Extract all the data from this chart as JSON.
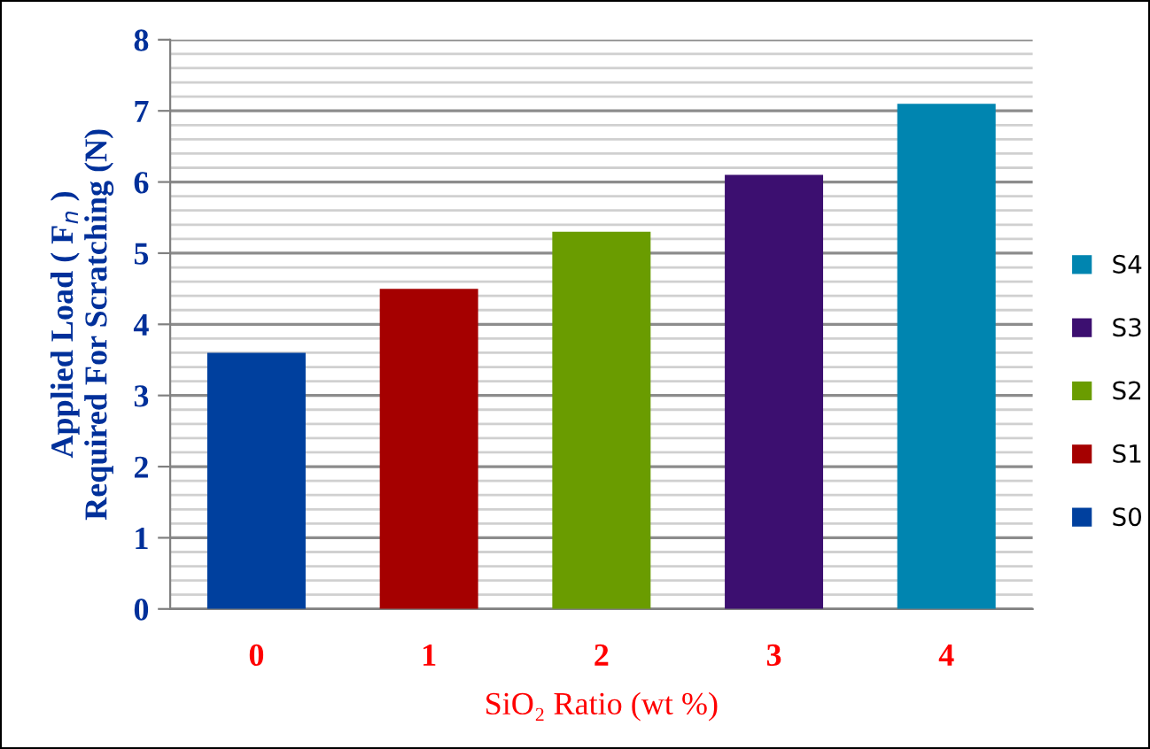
{
  "chart_data": {
    "type": "bar",
    "xlabel": "SiO₂ Ratio (wt %)",
    "ylabel": "Applied Load ( F$_{n}$ )\nRequired For Scratching (N)",
    "categories": [
      "0",
      "1",
      "2",
      "3",
      "4"
    ],
    "series": [
      {
        "name": "S0",
        "color": "#00409e",
        "values": [
          3.6,
          null,
          null,
          null,
          null
        ]
      },
      {
        "name": "S1",
        "color": "#a50000",
        "values": [
          null,
          4.5,
          null,
          null,
          null
        ]
      },
      {
        "name": "S2",
        "color": "#6a9c00",
        "values": [
          null,
          null,
          5.3,
          null,
          null
        ]
      },
      {
        "name": "S3",
        "color": "#3c0f70",
        "values": [
          null,
          null,
          null,
          6.1,
          null
        ]
      },
      {
        "name": "S4",
        "color": "#0085b0",
        "values": [
          null,
          null,
          null,
          null,
          7.1
        ]
      }
    ],
    "ylim": [
      0,
      8
    ],
    "yticks": [
      0,
      {
        "value": 0.2,
        "label": null
      },
      {
        "value": 0.4,
        "label": null
      },
      {
        "value": 0.6,
        "label": null
      },
      {
        "value": 0.8,
        "label": null
      },
      1,
      {
        "value": 1.2,
        "label": null
      },
      {
        "value": 1.4,
        "label": null
      },
      {
        "value": 1.6,
        "label": null
      },
      {
        "value": 1.8,
        "label": null
      },
      2,
      {
        "value": 2.2,
        "label": null
      },
      {
        "value": 2.4,
        "label": null
      },
      {
        "value": 2.6,
        "label": null
      },
      {
        "value": 2.8,
        "label": null
      },
      3,
      {
        "value": 3.2,
        "label": null
      },
      {
        "value": 3.4,
        "label": null
      },
      {
        "value": 3.6,
        "label": null
      },
      {
        "value": 3.8,
        "label": null
      },
      4,
      {
        "value": 4.2,
        "label": null
      },
      {
        "value": 4.4,
        "label": null
      },
      {
        "value": 4.6,
        "label": null
      },
      {
        "value": 4.8,
        "label": null
      },
      5,
      {
        "value": 5.2,
        "label": null
      },
      {
        "value": 5.4,
        "label": null
      },
      {
        "value": 5.6,
        "label": null
      },
      {
        "value": 5.8,
        "label": null
      },
      6,
      {
        "value": 6.2,
        "label": null
      },
      {
        "value": 6.4,
        "label": null
      },
      {
        "value": 6.6,
        "label": null
      },
      {
        "value": 6.8,
        "label": null
      },
      7,
      {
        "value": 7.2,
        "label": null
      },
      {
        "value": 7.4,
        "label": null
      },
      {
        "value": 7.6,
        "label": null
      },
      {
        "value": 7.8,
        "label": null
      },
      8
    ],
    "grid": "y",
    "legend": "right"
  }
}
